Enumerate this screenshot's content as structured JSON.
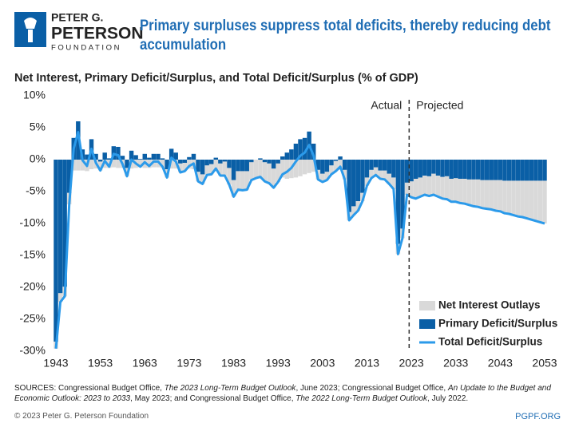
{
  "logo": {
    "line1": "PETER G.",
    "line2": "PETERSON",
    "line3": "FOUNDATION"
  },
  "chart_data": {
    "type": "bar",
    "title": "Primary surpluses suppress total deficits, thereby reducing debt accumulation",
    "y_label": "Net Interest, Primary Deficit/Surplus, and Total Deficit/Surplus (% of GDP)",
    "annotations": [
      "Actual",
      "Projected"
    ],
    "projection_start": 2023,
    "x": [
      1943,
      1944,
      1945,
      1946,
      1947,
      1948,
      1949,
      1950,
      1951,
      1952,
      1953,
      1954,
      1955,
      1956,
      1957,
      1958,
      1959,
      1960,
      1961,
      1962,
      1963,
      1964,
      1965,
      1966,
      1967,
      1968,
      1969,
      1970,
      1971,
      1972,
      1973,
      1974,
      1975,
      1976,
      1977,
      1978,
      1979,
      1980,
      1981,
      1982,
      1983,
      1984,
      1985,
      1986,
      1987,
      1988,
      1989,
      1990,
      1991,
      1992,
      1993,
      1994,
      1995,
      1996,
      1997,
      1998,
      1999,
      2000,
      2001,
      2002,
      2003,
      2004,
      2005,
      2006,
      2007,
      2008,
      2009,
      2010,
      2011,
      2012,
      2013,
      2014,
      2015,
      2016,
      2017,
      2018,
      2019,
      2020,
      2021,
      2022,
      2023,
      2024,
      2025,
      2026,
      2027,
      2028,
      2029,
      2030,
      2031,
      2032,
      2033,
      2034,
      2035,
      2036,
      2037,
      2038,
      2039,
      2040,
      2041,
      2042,
      2043,
      2044,
      2045,
      2046,
      2047,
      2048,
      2049,
      2050,
      2051,
      2052,
      2053
    ],
    "series": [
      {
        "name": "Net Interest Outlays",
        "type": "bar",
        "stack": true,
        "color": "#d9d9d9",
        "values": [
          1.1,
          1.4,
          1.5,
          1.8,
          1.7,
          1.7,
          1.7,
          1.8,
          1.5,
          1.4,
          1.4,
          1.3,
          1.3,
          1.2,
          1.3,
          1.3,
          1.3,
          1.4,
          1.3,
          1.2,
          1.3,
          1.3,
          1.2,
          1.2,
          1.3,
          1.3,
          1.4,
          1.4,
          1.4,
          1.3,
          1.4,
          1.5,
          1.5,
          1.5,
          1.5,
          1.6,
          1.7,
          1.9,
          2.2,
          2.6,
          2.6,
          2.9,
          3.0,
          2.9,
          2.8,
          2.9,
          2.9,
          3.0,
          3.1,
          3.0,
          2.9,
          2.8,
          3.0,
          2.9,
          2.8,
          2.6,
          2.3,
          2.1,
          1.9,
          1.5,
          1.3,
          1.3,
          1.4,
          1.6,
          1.6,
          1.5,
          1.3,
          1.4,
          1.5,
          1.3,
          1.3,
          1.3,
          1.2,
          1.3,
          1.4,
          1.6,
          1.8,
          1.6,
          1.5,
          1.9,
          2.5,
          3.1,
          3.0,
          3.0,
          3.1,
          3.3,
          3.3,
          3.4,
          3.6,
          3.6,
          3.7,
          3.8,
          3.9,
          4.0,
          4.2,
          4.3,
          4.4,
          4.5,
          4.6,
          4.8,
          4.9,
          5.1,
          5.2,
          5.4,
          5.6,
          5.7,
          5.9,
          6.1,
          6.3,
          6.5,
          6.7
        ]
      },
      {
        "name": "Primary Deficit/Surplus",
        "type": "bar",
        "color": "#0a5fa6",
        "values": [
          -28.5,
          -20.9,
          -19.9,
          -5.2,
          3.4,
          6.0,
          1.6,
          0.8,
          3.2,
          0.9,
          -0.3,
          1.1,
          0.2,
          2.1,
          2.0,
          0.6,
          -1.3,
          1.4,
          0.7,
          0.1,
          0.9,
          0.3,
          0.9,
          0.9,
          0.2,
          -1.5,
          1.7,
          1.1,
          -0.6,
          -0.5,
          0.4,
          0.9,
          -1.9,
          -2.3,
          -0.9,
          -0.7,
          0.3,
          -0.6,
          -0.3,
          -1.3,
          -3.2,
          -1.8,
          -1.8,
          -1.8,
          -0.4,
          0.0,
          0.2,
          -0.4,
          -0.6,
          -1.4,
          -0.6,
          0.5,
          1.1,
          1.6,
          2.5,
          3.2,
          3.4,
          4.4,
          2.5,
          -1.6,
          -2.2,
          -1.9,
          -0.9,
          -0.2,
          0.5,
          -1.6,
          -8.2,
          -7.3,
          -6.5,
          -5.2,
          -2.8,
          -1.6,
          -1.2,
          -1.7,
          -1.7,
          -2.2,
          -2.8,
          -13.2,
          -10.8,
          -3.6,
          -3.4,
          -3.0,
          -2.8,
          -2.5,
          -2.6,
          -2.2,
          -2.5,
          -2.7,
          -2.6,
          -3.0,
          -2.9,
          -3.0,
          -3.0,
          -3.1,
          -3.1,
          -3.1,
          -3.2,
          -3.2,
          -3.2,
          -3.2,
          -3.2,
          -3.3,
          -3.3,
          -3.3,
          -3.3,
          -3.3,
          -3.3,
          -3.3,
          -3.3,
          -3.3,
          -3.3
        ]
      },
      {
        "name": "Total Deficit/Surplus",
        "type": "line",
        "color": "#2b9aea",
        "values": [
          -29.6,
          -22.3,
          -21.4,
          -7.0,
          1.7,
          4.3,
          -0.1,
          -1.0,
          1.7,
          -0.5,
          -1.7,
          -0.2,
          -1.1,
          0.9,
          0.7,
          -0.7,
          -2.6,
          0.0,
          -0.6,
          -1.1,
          -0.4,
          -1.0,
          -0.3,
          -0.3,
          -1.1,
          -2.8,
          0.3,
          -0.3,
          -2.0,
          -1.8,
          -1.0,
          -0.6,
          -3.4,
          -3.8,
          -2.4,
          -2.3,
          -1.4,
          -2.5,
          -2.5,
          -3.9,
          -5.8,
          -4.7,
          -4.8,
          -4.7,
          -3.2,
          -2.9,
          -2.7,
          -3.4,
          -3.7,
          -4.4,
          -3.5,
          -2.3,
          -1.9,
          -1.3,
          -0.3,
          0.6,
          1.1,
          2.3,
          0.6,
          -3.1,
          -3.5,
          -3.2,
          -2.3,
          -1.8,
          -1.1,
          -3.1,
          -9.5,
          -8.7,
          -8.0,
          -6.5,
          -4.1,
          -2.9,
          -2.4,
          -3.0,
          -3.1,
          -3.8,
          -4.6,
          -14.8,
          -12.3,
          -5.5,
          -5.9,
          -6.1,
          -5.8,
          -5.5,
          -5.7,
          -5.5,
          -5.8,
          -6.1,
          -6.2,
          -6.6,
          -6.6,
          -6.8,
          -6.9,
          -7.1,
          -7.3,
          -7.4,
          -7.6,
          -7.7,
          -7.8,
          -8.0,
          -8.1,
          -8.4,
          -8.5,
          -8.7,
          -8.9,
          -9.0,
          -9.2,
          -9.4,
          -9.6,
          -9.8,
          -10.0
        ]
      }
    ],
    "xlim": [
      1943,
      2053
    ],
    "xticks": [
      1943,
      1953,
      1963,
      1973,
      1983,
      1993,
      2003,
      2013,
      2023,
      2033,
      2043,
      2053
    ],
    "ylim": [
      -30,
      10
    ],
    "yticks": [
      {
        "value": 10,
        "label": "10%"
      },
      {
        "value": 5,
        "label": "5%"
      },
      {
        "value": 0,
        "label": "0%"
      },
      {
        "value": -5,
        "label": "-5%"
      },
      {
        "value": -10,
        "label": "-10%"
      },
      {
        "value": -15,
        "label": "-15%"
      },
      {
        "value": -20,
        "label": "-20%"
      },
      {
        "value": -25,
        "label": "-25%"
      },
      {
        "value": -30,
        "label": "-30%"
      }
    ],
    "grid": false,
    "legend": "lower right"
  },
  "footer": {
    "sources": [
      "SOURCES: Congressional Budget Office, ",
      "The 2023 Long-Term Budget Outlook",
      ", June 2023; Congressional Budget Office, ",
      "An Update to the Budget and Economic Outlook: 2023 to 2033",
      ", May 2023; and Congressional Budget Office, ",
      "The 2022 Long-Term Budget Outlook",
      ", July 2022."
    ],
    "copyright": "© 2023 Peter G. Peterson Foundation",
    "site": "PGPF.ORG"
  }
}
